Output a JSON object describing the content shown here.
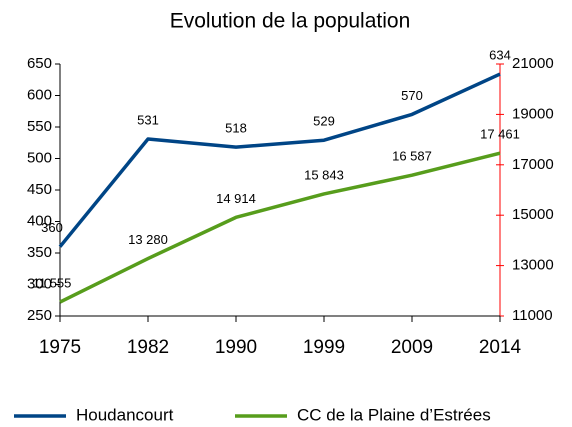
{
  "chart_data": {
    "type": "line",
    "title": "Evolution de la population",
    "categories": [
      "1975",
      "1982",
      "1990",
      "1999",
      "2009",
      "2014"
    ],
    "series": [
      {
        "name": "Houdancourt",
        "color": "#004586",
        "values": [
          360,
          531,
          518,
          529,
          570,
          634
        ]
      },
      {
        "name": "CC de la Plaine d’Estrées",
        "color": "#579d1c",
        "axis": "y2",
        "values": [
          11555,
          13280,
          14914,
          15843,
          16587,
          17461
        ],
        "value_labels": [
          "11 555",
          "13 280",
          "14 914",
          "15 843",
          "16 587",
          "17 461"
        ]
      }
    ],
    "ylim": [
      250,
      650
    ],
    "yticks": [
      250,
      300,
      350,
      400,
      450,
      500,
      550,
      600,
      650
    ],
    "y2lim": [
      11000,
      21000
    ],
    "y2ticks": [
      11000,
      13000,
      15000,
      17000,
      19000,
      21000
    ],
    "y_axis_color": "#000000",
    "y2_axis_color": "#ff0000",
    "legend": "bottom"
  }
}
